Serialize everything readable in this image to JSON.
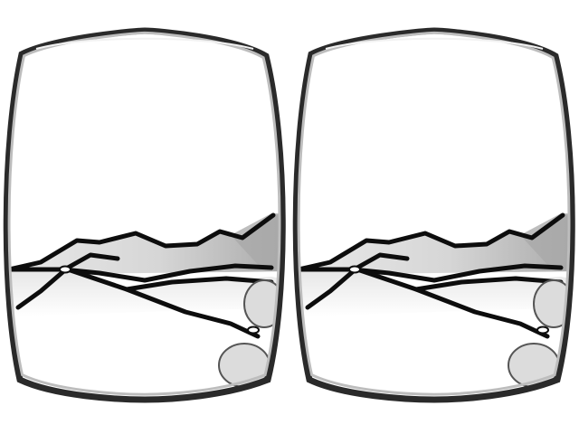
{
  "scene": {
    "type": "stereo-vr-view",
    "eyes": [
      "left",
      "right"
    ],
    "colors": {
      "background": "#ffffff",
      "lens_frame_outer": "#2a2a2a",
      "lens_frame_inner": "#bdbdbd",
      "ridge_line": "#0d0d0d",
      "terrain_fill": "#d6d6d6",
      "terrain_shade": "#a8a8a8",
      "rock_dark": "#555555",
      "rock_light": "#dcdcdc"
    },
    "icons": [
      "lens-frame-icon",
      "rock-icon"
    ]
  }
}
